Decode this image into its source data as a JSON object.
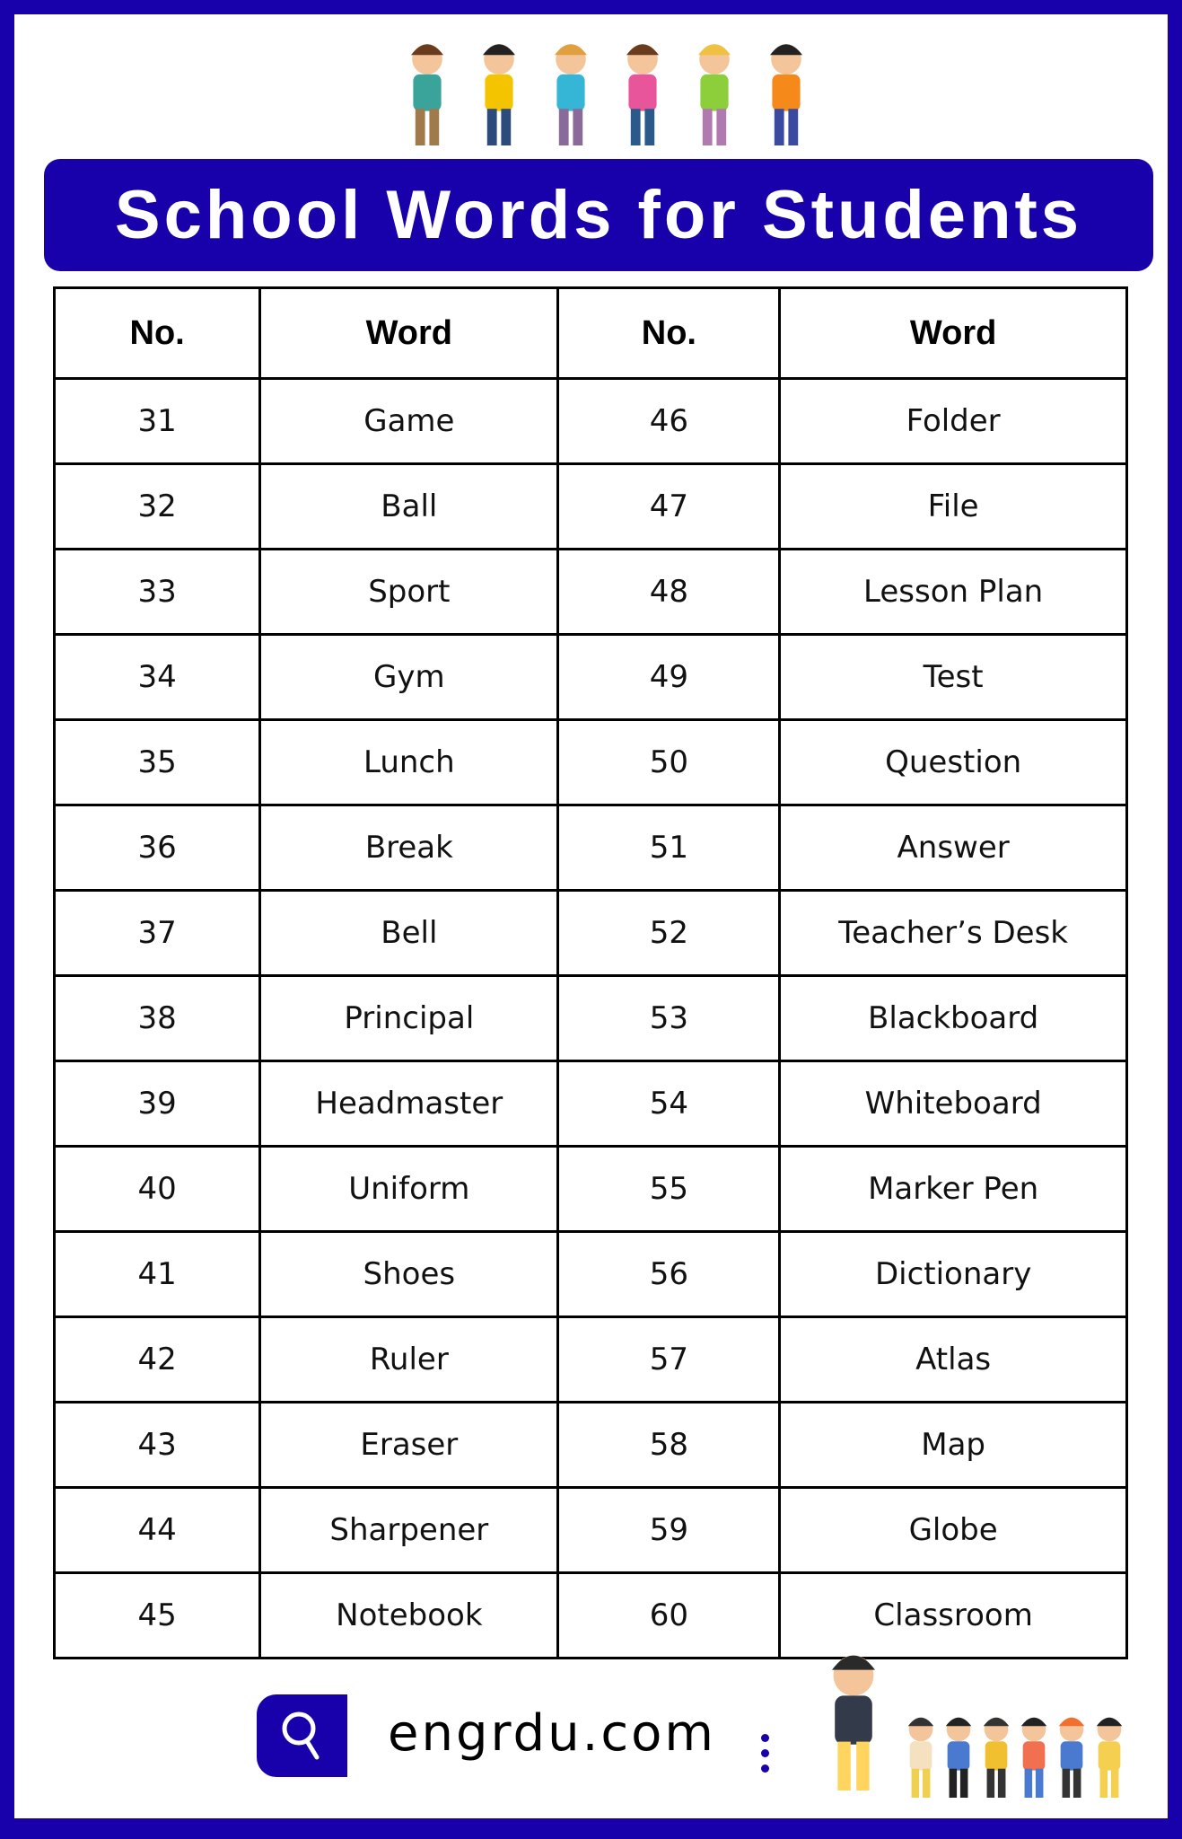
{
  "title": "School Words for Students",
  "colors": {
    "brand": "#1800aa"
  },
  "table": {
    "headers": [
      "No.",
      "Word",
      "No.",
      "Word"
    ],
    "rows": [
      [
        "31",
        "Game",
        "46",
        "Folder"
      ],
      [
        "32",
        "Ball",
        "47",
        "File"
      ],
      [
        "33",
        "Sport",
        "48",
        "Lesson Plan"
      ],
      [
        "34",
        "Gym",
        "49",
        "Test"
      ],
      [
        "35",
        "Lunch",
        "50",
        "Question"
      ],
      [
        "36",
        "Break",
        "51",
        "Answer"
      ],
      [
        "37",
        "Bell",
        "52",
        "Teacher’s Desk"
      ],
      [
        "38",
        "Principal",
        "53",
        "Blackboard"
      ],
      [
        "39",
        "Headmaster",
        "54",
        "Whiteboard"
      ],
      [
        "40",
        "Uniform",
        "55",
        "Marker Pen"
      ],
      [
        "41",
        "Shoes",
        "56",
        "Dictionary"
      ],
      [
        "42",
        "Ruler",
        "57",
        "Atlas"
      ],
      [
        "43",
        "Eraser",
        "58",
        "Map"
      ],
      [
        "44",
        "Sharpener",
        "59",
        "Globe"
      ],
      [
        "45",
        "Notebook",
        "60",
        "Classroom"
      ]
    ]
  },
  "footer": {
    "site": "engrdu.com",
    "icon": "search-icon"
  }
}
